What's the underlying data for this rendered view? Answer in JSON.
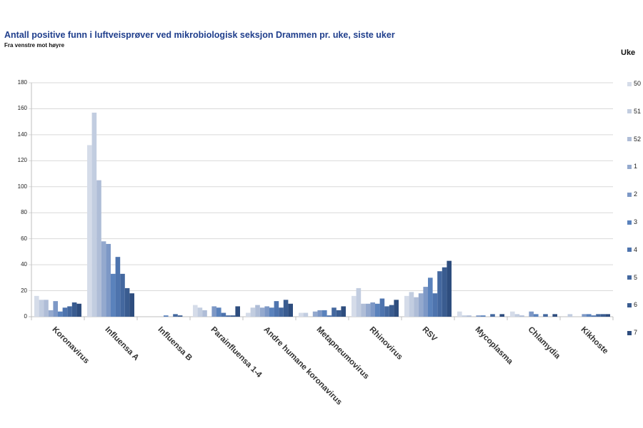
{
  "header": {
    "title": "Antall positive funn i luftveisprøver ved mikrobiologisk seksjon Drammen pr. uke, siste uker",
    "subtitle": "Fra venstre mot høyre"
  },
  "legend": {
    "title": "Uke",
    "items": [
      "50",
      "51",
      "52",
      "1",
      "2",
      "3",
      "4",
      "5",
      "6",
      "7"
    ]
  },
  "colors": [
    "#D5DCE9",
    "#C2CDE0",
    "#AFBDD7",
    "#94A9CE",
    "#7D98C6",
    "#5A82BC",
    "#4E74AE",
    "#44689F",
    "#3A5C90",
    "#2E4D7E"
  ],
  "chart_data": {
    "type": "bar",
    "title": "Antall positive funn i luftveisprøver ved mikrobiologisk seksjon Drammen pr. uke, siste uker",
    "subtitle": "Fra venstre mot høyre",
    "xlabel": "",
    "ylabel": "",
    "ylim": [
      0,
      180
    ],
    "yticks": [
      0,
      20,
      40,
      60,
      80,
      100,
      120,
      140,
      160,
      180
    ],
    "grid": true,
    "legend_position": "right",
    "legend_title": "Uke",
    "categories": [
      "Koronavirus",
      "Influensa A",
      "Influensa B",
      "Parainfluensa 1-4",
      "Andre humane koronavirus",
      "Metapneumovirus",
      "Rhinovirus",
      "RSV",
      "Mycoplasma",
      "Chlamydia",
      "Kikhoste"
    ],
    "series": [
      {
        "name": "50",
        "values": [
          16,
          132,
          0,
          9,
          3,
          3,
          16,
          16,
          4,
          4,
          0
        ]
      },
      {
        "name": "51",
        "values": [
          13,
          157,
          0,
          7,
          7,
          3,
          22,
          19,
          1,
          2,
          2
        ]
      },
      {
        "name": "52",
        "values": [
          13,
          105,
          0,
          5,
          9,
          0,
          10,
          15,
          1,
          1,
          0
        ]
      },
      {
        "name": "1",
        "values": [
          5,
          58,
          0,
          0,
          7,
          4,
          10,
          18,
          0,
          0,
          0
        ]
      },
      {
        "name": "2",
        "values": [
          12,
          56,
          0,
          8,
          8,
          5,
          11,
          23,
          1,
          4,
          2
        ]
      },
      {
        "name": "3",
        "values": [
          4,
          33,
          1,
          7,
          7,
          5,
          10,
          30,
          1,
          2,
          2
        ]
      },
      {
        "name": "4",
        "values": [
          7,
          46,
          0,
          3,
          12,
          1,
          14,
          18,
          0,
          0,
          1
        ]
      },
      {
        "name": "5",
        "values": [
          8,
          33,
          2,
          1,
          7,
          7,
          8,
          35,
          2,
          2,
          2
        ]
      },
      {
        "name": "6",
        "values": [
          11,
          22,
          1,
          1,
          13,
          5,
          9,
          38,
          0,
          0,
          2
        ]
      },
      {
        "name": "7",
        "values": [
          10,
          18,
          0,
          8,
          10,
          8,
          13,
          43,
          2,
          2,
          2
        ]
      }
    ]
  }
}
